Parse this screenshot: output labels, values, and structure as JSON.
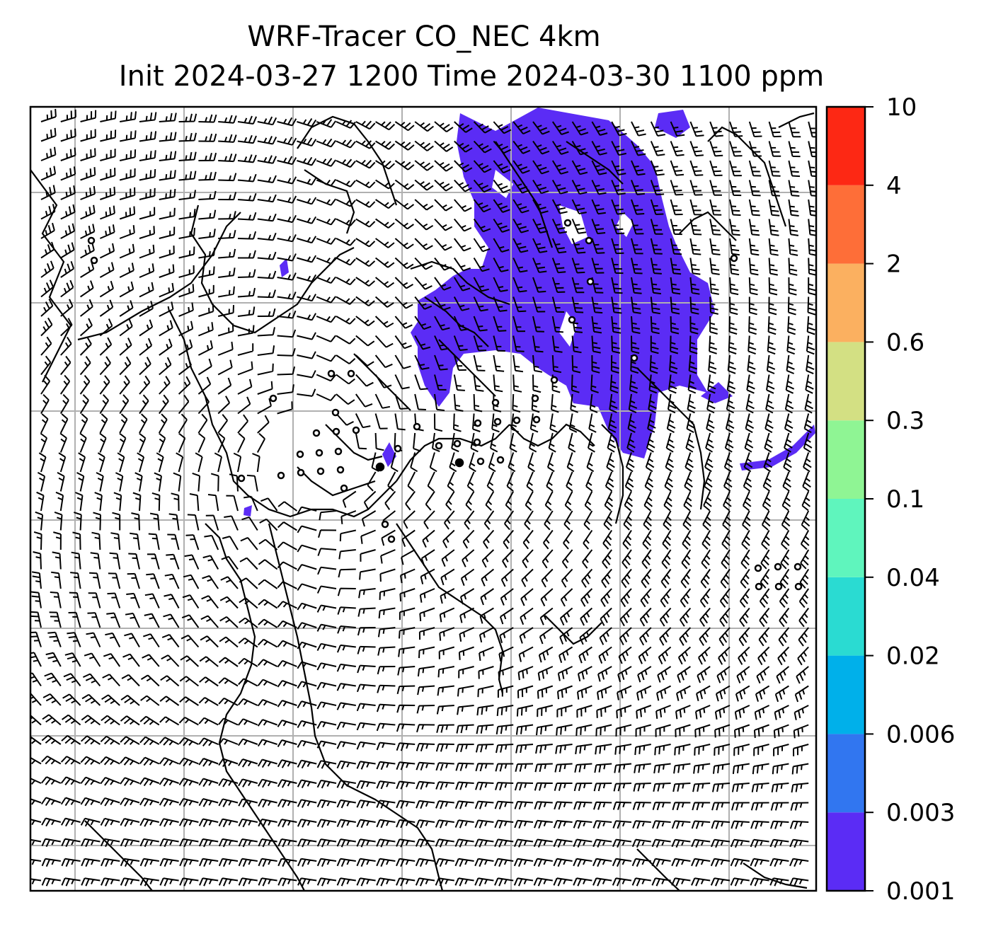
{
  "title": {
    "line1": "WRF-Tracer CO_NEC 4km",
    "line2": "Init 2024-03-27 1200 Time 2024-03-30 1100 ppm"
  },
  "colorbar": {
    "levels": [
      "0.001",
      "0.003",
      "0.006",
      "0.02",
      "0.04",
      "0.1",
      "0.3",
      "0.6",
      "2",
      "4",
      "10"
    ],
    "colors": [
      "#5b2cf5",
      "#3176f0",
      "#00b0ea",
      "#2adbd2",
      "#5ff5bd",
      "#8ff594",
      "#d3e083",
      "#fbb060",
      "#fe6e38",
      "#fd2814"
    ]
  },
  "map": {
    "plume_color": "#5b2cf5",
    "gridline_color": "#b0b0b0",
    "barb_color": "#000000"
  }
}
